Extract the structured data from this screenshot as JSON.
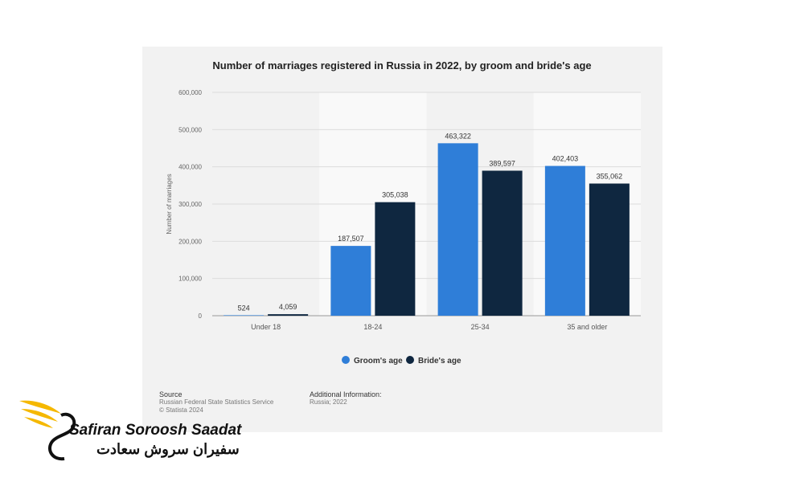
{
  "chart_data": {
    "type": "bar",
    "title": "Number of marriages registered in Russia in 2022, by groom and bride's age",
    "ylabel": "Number of marriages",
    "xlabel": "",
    "categories": [
      "Under 18",
      "18-24",
      "25-34",
      "35 and older"
    ],
    "series": [
      {
        "name": "Groom's age",
        "values": [
          524,
          187507,
          463322,
          402403
        ],
        "labels": [
          "524",
          "187,507",
          "463,322",
          "402,403"
        ],
        "color": "#2f7ed8"
      },
      {
        "name": "Bride's age",
        "values": [
          4059,
          305038,
          389597,
          355062
        ],
        "labels": [
          "4,059",
          "305,038",
          "389,597",
          "355,062"
        ],
        "color": "#0f2740"
      }
    ],
    "ylim": [
      0,
      600000
    ],
    "yticks": [
      0,
      100000,
      200000,
      300000,
      400000,
      500000,
      600000
    ],
    "ytick_labels": [
      "0",
      "100,000",
      "200,000",
      "300,000",
      "400,000",
      "500,000",
      "600,000"
    ],
    "grid": true,
    "legend": "bottom-center"
  },
  "footer": {
    "source_heading": "Source",
    "source_line1": "Russian Federal State Statistics Service",
    "source_line2": "© Statista 2024",
    "info_heading": "Additional Information:",
    "info_line1": "Russia; 2022"
  },
  "logo": {
    "name_en": "Safiran Soroosh Saadat",
    "name_fa": "سفیران سروش سعادت",
    "wing_color": "#f5b800"
  }
}
